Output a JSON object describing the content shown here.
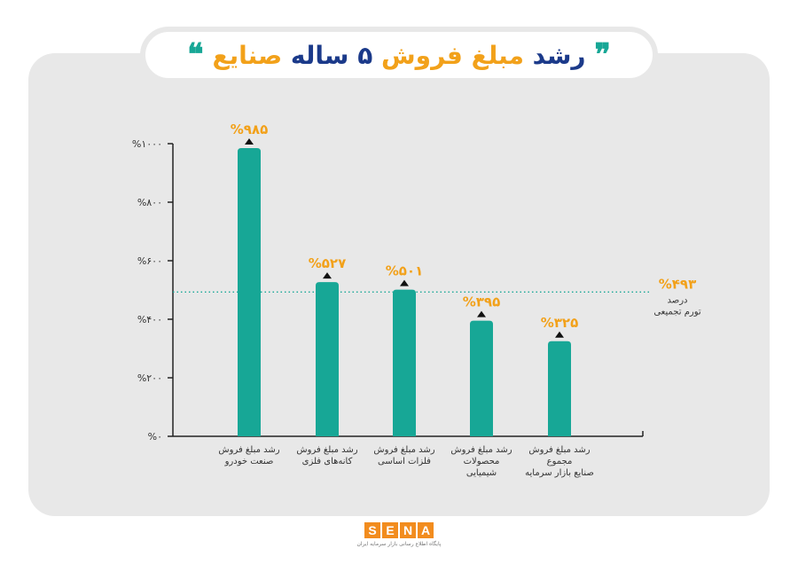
{
  "header": {
    "title_part1": "رشد",
    "title_part2": "مبلغ فروش",
    "title_part3": "۵ ساله",
    "title_part4": "صنایع",
    "quote_open": "❞",
    "quote_close": "❝"
  },
  "chart_data": {
    "type": "bar",
    "title": "رشد مبلغ فروش ۵ ساله صنایع",
    "categories": [
      "رشد مبلغ فروش صنعت خودرو",
      "رشد مبلغ فروش کانه‌های فلزی",
      "رشد مبلغ فروش فلزات اساسی",
      "رشد مبلغ فروش محصولات شیمیایی",
      "رشد مبلغ فروش مجموع صنایع بازار سرمایه"
    ],
    "category_lines": [
      [
        "رشد مبلغ فروش",
        "صنعت خودرو"
      ],
      [
        "رشد مبلغ فروش",
        "کانه‌های فلزی"
      ],
      [
        "رشد مبلغ فروش",
        "فلزات اساسی"
      ],
      [
        "رشد مبلغ فروش",
        "محصولات",
        "شیمیایی"
      ],
      [
        "رشد مبلغ فروش",
        "مجموع",
        "صنایع بازار سرمایه"
      ]
    ],
    "values": [
      985,
      527,
      501,
      395,
      325
    ],
    "value_labels": [
      "%۹۸۵",
      "%۵۲۷",
      "%۵۰۱",
      "%۳۹۵",
      "%۳۲۵"
    ],
    "ylim": [
      0,
      1000
    ],
    "yticks": [
      0,
      200,
      400,
      600,
      800,
      1000
    ],
    "ytick_labels": [
      "%۰",
      "%۲۰۰",
      "%۴۰۰",
      "%۶۰۰",
      "%۸۰۰",
      "%۱۰۰۰"
    ],
    "reference_line": {
      "value": 493,
      "label": "%۴۹۳",
      "note_lines": [
        "درصد",
        "تورم تجمیعی"
      ]
    },
    "grid": false,
    "colors": {
      "bar": "#17a796",
      "value_label": "#f2a11a",
      "reference_line": "#17a796",
      "axis": "#222222"
    }
  },
  "footer": {
    "brand_letters": [
      "S",
      "E",
      "N",
      "A"
    ],
    "tagline": "پایگاه اطلاع رسانی بازار سرمایه ایران"
  }
}
